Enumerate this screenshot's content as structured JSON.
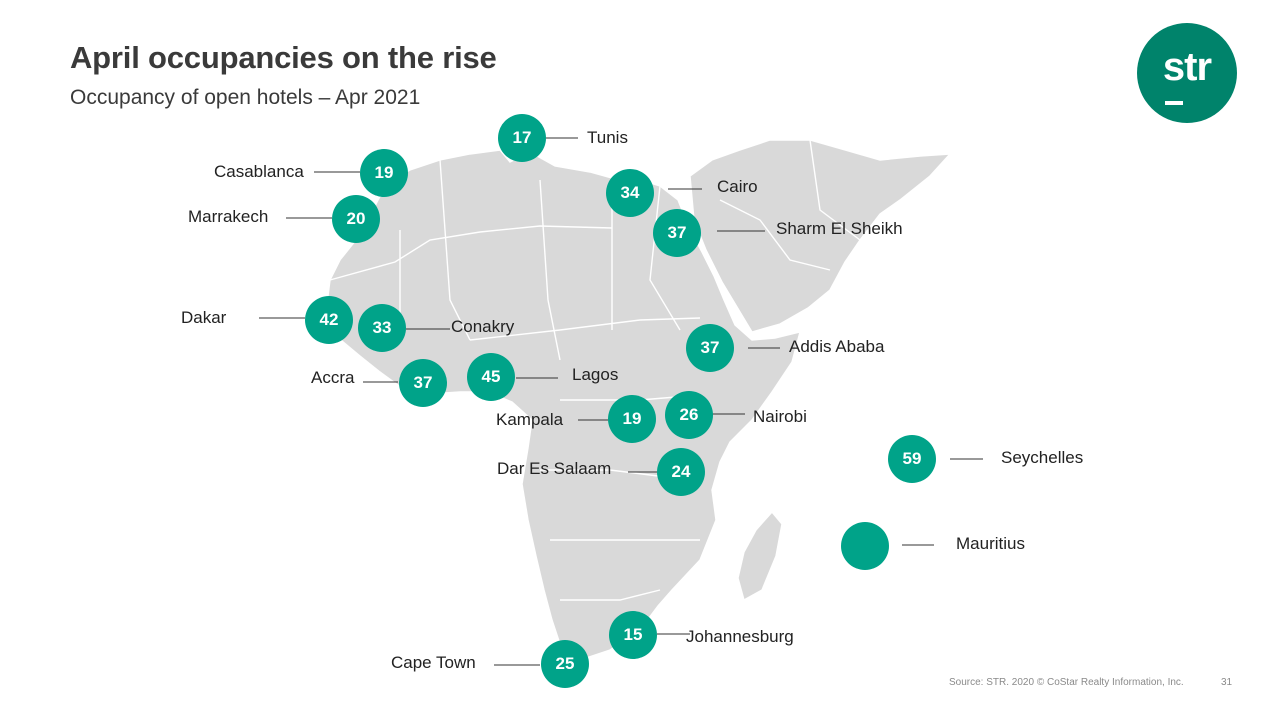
{
  "header": {
    "title": "April occupancies on the rise",
    "subtitle": "Occupancy of open hotels – Apr 2021"
  },
  "logo": {
    "text": "str"
  },
  "colors": {
    "bubble": "#00a389",
    "logo": "#00836b",
    "land": "#d9d9d9"
  },
  "cities": [
    {
      "name": "Tunis",
      "occupancy": "17"
    },
    {
      "name": "Casablanca",
      "occupancy": "19"
    },
    {
      "name": "Marrakech",
      "occupancy": "20"
    },
    {
      "name": "Cairo",
      "occupancy": "34"
    },
    {
      "name": "Sharm El Sheikh",
      "occupancy": "37"
    },
    {
      "name": "Dakar",
      "occupancy": "42"
    },
    {
      "name": "Conakry",
      "occupancy": "33"
    },
    {
      "name": "Addis Ababa",
      "occupancy": "37"
    },
    {
      "name": "Accra",
      "occupancy": "37"
    },
    {
      "name": "Lagos",
      "occupancy": "45"
    },
    {
      "name": "Kampala",
      "occupancy": "19"
    },
    {
      "name": "Nairobi",
      "occupancy": "26"
    },
    {
      "name": "Dar Es Salaam",
      "occupancy": "24"
    },
    {
      "name": "Seychelles",
      "occupancy": "59"
    },
    {
      "name": "Mauritius",
      "occupancy": ""
    },
    {
      "name": "Johannesburg",
      "occupancy": "15"
    },
    {
      "name": "Cape Town",
      "occupancy": "25"
    }
  ],
  "footer": {
    "source": "Source: STR. 2020 © CoStar Realty Information, Inc.",
    "page": "31"
  }
}
